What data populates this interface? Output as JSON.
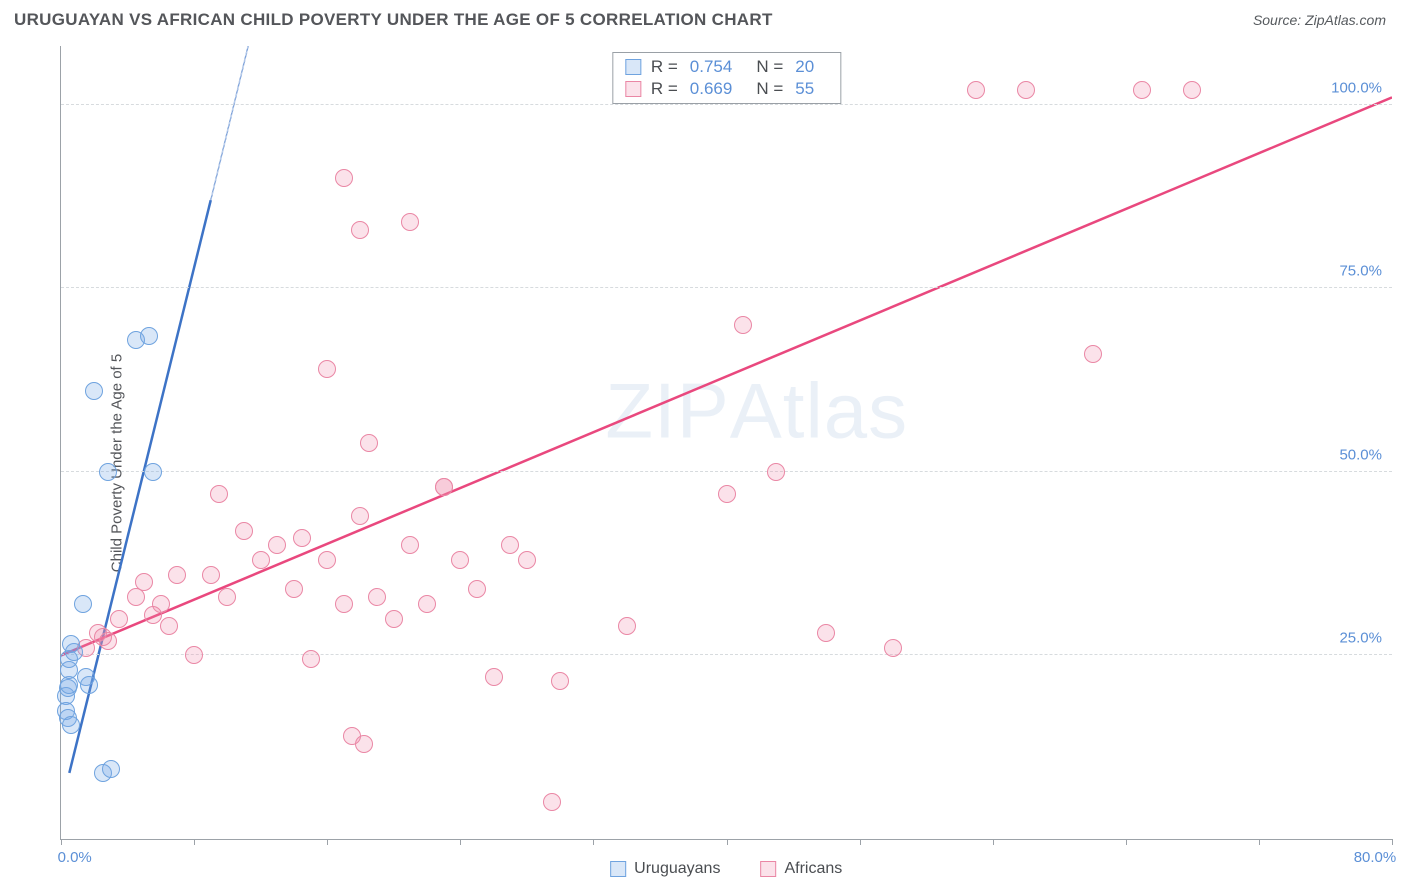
{
  "title": "URUGUAYAN VS AFRICAN CHILD POVERTY UNDER THE AGE OF 5 CORRELATION CHART",
  "source": "Source: ZipAtlas.com",
  "ylabel": "Child Poverty Under the Age of 5",
  "watermark_a": "ZIP",
  "watermark_b": "Atlas",
  "chart": {
    "type": "scatter",
    "xlim": [
      0,
      80
    ],
    "ylim": [
      0,
      108
    ],
    "x_ticks": [
      0,
      8,
      16,
      24,
      32,
      40,
      48,
      56,
      64,
      72,
      80
    ],
    "x_tick_labels": {
      "0": "0.0%",
      "80": "80.0%"
    },
    "y_gridlines": [
      25,
      50,
      75,
      100
    ],
    "y_tick_labels": {
      "25": "25.0%",
      "50": "50.0%",
      "75": "75.0%",
      "100": "100.0%"
    },
    "marker_radius": 9,
    "background_color": "#ffffff",
    "grid_color": "#d7dbde",
    "axis_color": "#9ca2a8",
    "tick_label_color": "#5b8fd6",
    "series": [
      {
        "name": "Uruguayans",
        "fill": "rgba(120, 170, 230, 0.28)",
        "stroke": "#6fa3df",
        "trend_color": "#3d73c6",
        "trend": {
          "x1": 0.5,
          "y1": 9,
          "x2": 9,
          "y2": 87,
          "x2d": 12,
          "y2d": 115
        },
        "R": "0.754",
        "N": "20",
        "points": [
          [
            0.3,
            19.5
          ],
          [
            0.4,
            20.5
          ],
          [
            0.5,
            21
          ],
          [
            0.5,
            23
          ],
          [
            0.5,
            24.5
          ],
          [
            0.8,
            25.5
          ],
          [
            0.3,
            17.5
          ],
          [
            0.4,
            16.5
          ],
          [
            0.6,
            15.5
          ],
          [
            1.5,
            22
          ],
          [
            1.7,
            21
          ],
          [
            2.5,
            9
          ],
          [
            3.0,
            9.5
          ],
          [
            1.3,
            32
          ],
          [
            2.8,
            50
          ],
          [
            5.5,
            50
          ],
          [
            2.0,
            61
          ],
          [
            4.5,
            68
          ],
          [
            5.3,
            68.5
          ],
          [
            0.6,
            26.5
          ]
        ]
      },
      {
        "name": "Africans",
        "fill": "rgba(240, 140, 170, 0.25)",
        "stroke": "#ea87a5",
        "trend_color": "#e9487e",
        "trend": {
          "x1": 0,
          "y1": 25,
          "x2": 80,
          "y2": 101
        },
        "R": "0.669",
        "N": "55",
        "points": [
          [
            1.5,
            26
          ],
          [
            2.2,
            28
          ],
          [
            2.5,
            27.5
          ],
          [
            2.8,
            27
          ],
          [
            3.5,
            30
          ],
          [
            4.5,
            33
          ],
          [
            5,
            35
          ],
          [
            6,
            32
          ],
          [
            7,
            36
          ],
          [
            8,
            25
          ],
          [
            9,
            36
          ],
          [
            10,
            33
          ],
          [
            11,
            42
          ],
          [
            9.5,
            47
          ],
          [
            12,
            38
          ],
          [
            13,
            40
          ],
          [
            14,
            34
          ],
          [
            14.5,
            41
          ],
          [
            15,
            24.5
          ],
          [
            16,
            38
          ],
          [
            17,
            32
          ],
          [
            18,
            44
          ],
          [
            19,
            33
          ],
          [
            18.5,
            54
          ],
          [
            20,
            30
          ],
          [
            21,
            40
          ],
          [
            22,
            32
          ],
          [
            23,
            48
          ],
          [
            24,
            38
          ],
          [
            25,
            34
          ],
          [
            26,
            22
          ],
          [
            16,
            64
          ],
          [
            17,
            90
          ],
          [
            18,
            83
          ],
          [
            21,
            84
          ],
          [
            23,
            48
          ],
          [
            27,
            40
          ],
          [
            28,
            38
          ],
          [
            29.5,
            5
          ],
          [
            30,
            21.5
          ],
          [
            34,
            29
          ],
          [
            40,
            47
          ],
          [
            41,
            70
          ],
          [
            43,
            50
          ],
          [
            46,
            28
          ],
          [
            50,
            26
          ],
          [
            55,
            102
          ],
          [
            58,
            102
          ],
          [
            62,
            66
          ],
          [
            65,
            102
          ],
          [
            68,
            102
          ],
          [
            17.5,
            14
          ],
          [
            18.2,
            13
          ],
          [
            5.5,
            30.5
          ],
          [
            6.5,
            29
          ]
        ]
      }
    ]
  },
  "legend_top_labels": {
    "R": "R =",
    "N": "N ="
  },
  "legend_bottom": [
    "Uruguayans",
    "Africans"
  ]
}
